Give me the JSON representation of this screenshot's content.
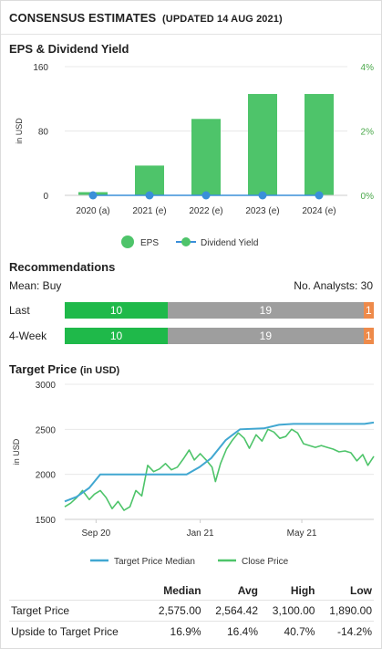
{
  "header": {
    "title": "CONSENSUS ESTIMATES",
    "updated": "(UPDATED 14 AUG 2021)"
  },
  "eps_section": {
    "title": "EPS & Dividend Yield"
  },
  "recommendations": {
    "title": "Recommendations",
    "mean": "Mean: Buy",
    "analysts": "No. Analysts: 30",
    "rows": [
      {
        "label": "Last",
        "buy": 10,
        "hold": 19,
        "sell": 1
      },
      {
        "label": "4-Week",
        "buy": 10,
        "hold": 19,
        "sell": 1
      }
    ]
  },
  "target_section": {
    "title": "Target Price",
    "unit": "(in USD)"
  },
  "stats_table": {
    "headers": [
      "",
      "Median",
      "Avg",
      "High",
      "Low"
    ],
    "rows": [
      {
        "label": "Target Price",
        "values": [
          "2,575.00",
          "2,564.42",
          "3,100.00",
          "1,890.00"
        ]
      },
      {
        "label": "Upside to Target Price",
        "values": [
          "16.9%",
          "16.4%",
          "40.7%",
          "-14.2%"
        ]
      }
    ]
  },
  "colors": {
    "eps_bar": "#4ec46a",
    "dividend": "#3a8fd9",
    "median_line": "#41a7d1",
    "close_line": "#4ec46a",
    "buy": "#1fb94a",
    "hold": "#9e9e9e",
    "sell": "#ee8a4a",
    "axis_green": "#4aa84a"
  },
  "chart_data": [
    {
      "type": "bar",
      "categories": [
        "2020 (a)",
        "2021 (e)",
        "2022 (e)",
        "2023 (e)",
        "2024 (e)"
      ],
      "series": [
        {
          "name": "EPS",
          "type": "bar",
          "axis": "left",
          "values": [
            4,
            37,
            95,
            126,
            126
          ]
        },
        {
          "name": "Dividend Yield",
          "type": "line",
          "axis": "right",
          "values": [
            0,
            0,
            0,
            0,
            0
          ]
        }
      ],
      "ylabel": "in USD",
      "ylim": [
        0,
        160
      ],
      "yticks": [
        "0",
        "80",
        "160"
      ],
      "y2lim": [
        0,
        4
      ],
      "y2ticks": [
        "0%",
        "2%",
        "4%"
      ],
      "legend": "bottom",
      "grid": true
    },
    {
      "type": "line",
      "ylabel": "in USD",
      "ylim": [
        1500,
        3000
      ],
      "yticks": [
        "1500",
        "2000",
        "2500",
        "3000"
      ],
      "xlim": [
        "2020-08-14",
        "2021-08-14"
      ],
      "xticks": [
        {
          "date": "2020-09-20",
          "label": "Sep 20"
        },
        {
          "date": "2021-01-21",
          "label": "Jan 21"
        },
        {
          "date": "2021-05-21",
          "label": "May 21"
        }
      ],
      "legend": "bottom",
      "grid": true,
      "series": [
        {
          "name": "Target Price Median",
          "points": [
            [
              "2020-08-14",
              1700
            ],
            [
              "2020-08-28",
              1750
            ],
            [
              "2020-09-12",
              1850
            ],
            [
              "2020-09-25",
              2000
            ],
            [
              "2020-10-25",
              2000
            ],
            [
              "2020-11-20",
              2000
            ],
            [
              "2020-12-03",
              2000
            ],
            [
              "2021-01-05",
              2000
            ],
            [
              "2021-01-20",
              2080
            ],
            [
              "2021-02-03",
              2180
            ],
            [
              "2021-02-20",
              2380
            ],
            [
              "2021-03-09",
              2500
            ],
            [
              "2021-04-06",
              2510
            ],
            [
              "2021-04-24",
              2550
            ],
            [
              "2021-05-11",
              2560
            ],
            [
              "2021-06-08",
              2560
            ],
            [
              "2021-07-06",
              2560
            ],
            [
              "2021-08-03",
              2560
            ],
            [
              "2021-08-14",
              2575
            ]
          ]
        },
        {
          "name": "Close Price",
          "points": [
            [
              "2020-08-14",
              1640
            ],
            [
              "2020-08-21",
              1680
            ],
            [
              "2020-08-28",
              1740
            ],
            [
              "2020-09-04",
              1820
            ],
            [
              "2020-09-12",
              1720
            ],
            [
              "2020-09-18",
              1780
            ],
            [
              "2020-09-25",
              1820
            ],
            [
              "2020-10-02",
              1740
            ],
            [
              "2020-10-09",
              1620
            ],
            [
              "2020-10-16",
              1700
            ],
            [
              "2020-10-23",
              1600
            ],
            [
              "2020-10-30",
              1640
            ],
            [
              "2020-11-06",
              1820
            ],
            [
              "2020-11-13",
              1760
            ],
            [
              "2020-11-20",
              2100
            ],
            [
              "2020-11-27",
              2030
            ],
            [
              "2020-12-04",
              2060
            ],
            [
              "2020-12-11",
              2120
            ],
            [
              "2020-12-18",
              2050
            ],
            [
              "2020-12-25",
              2080
            ],
            [
              "2021-01-01",
              2170
            ],
            [
              "2021-01-08",
              2270
            ],
            [
              "2021-01-14",
              2160
            ],
            [
              "2021-01-21",
              2230
            ],
            [
              "2021-01-28",
              2160
            ],
            [
              "2021-02-04",
              2080
            ],
            [
              "2021-02-08",
              1920
            ],
            [
              "2021-02-14",
              2120
            ],
            [
              "2021-02-21",
              2280
            ],
            [
              "2021-02-28",
              2380
            ],
            [
              "2021-03-07",
              2460
            ],
            [
              "2021-03-14",
              2400
            ],
            [
              "2021-03-20",
              2290
            ],
            [
              "2021-03-28",
              2440
            ],
            [
              "2021-04-04",
              2370
            ],
            [
              "2021-04-11",
              2500
            ],
            [
              "2021-04-18",
              2470
            ],
            [
              "2021-04-25",
              2400
            ],
            [
              "2021-05-02",
              2420
            ],
            [
              "2021-05-09",
              2500
            ],
            [
              "2021-05-16",
              2460
            ],
            [
              "2021-05-23",
              2340
            ],
            [
              "2021-05-30",
              2320
            ],
            [
              "2021-06-06",
              2300
            ],
            [
              "2021-06-13",
              2320
            ],
            [
              "2021-06-20",
              2300
            ],
            [
              "2021-06-27",
              2280
            ],
            [
              "2021-07-04",
              2250
            ],
            [
              "2021-07-11",
              2260
            ],
            [
              "2021-07-18",
              2240
            ],
            [
              "2021-07-25",
              2150
            ],
            [
              "2021-08-01",
              2220
            ],
            [
              "2021-08-07",
              2100
            ],
            [
              "2021-08-14",
              2200
            ]
          ]
        }
      ]
    }
  ]
}
